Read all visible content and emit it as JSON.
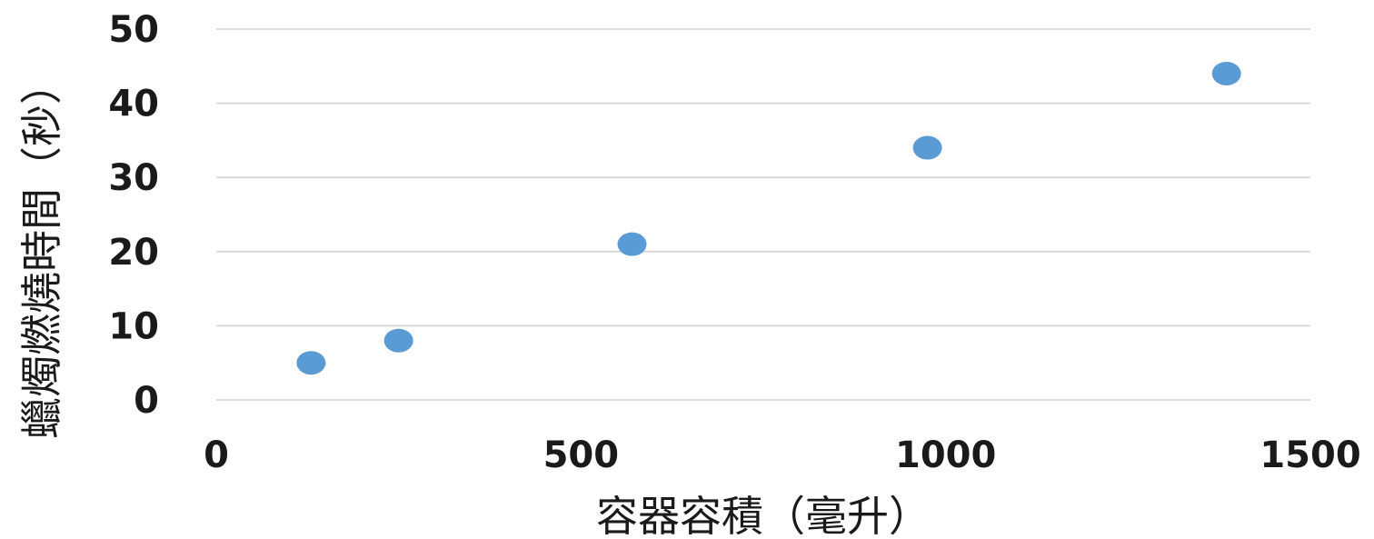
{
  "chart_data": {
    "type": "scatter",
    "title": "",
    "xlabel": "容器容積（毫升）",
    "ylabel": "蠟燭燃燒時間（秒）",
    "xlim": [
      0,
      1500
    ],
    "ylim": [
      0,
      50
    ],
    "x_ticks": [
      "0",
      "500",
      "1000",
      "1500"
    ],
    "y_ticks": [
      "0",
      "10",
      "20",
      "30",
      "40",
      "50"
    ],
    "grid": "horizontal",
    "series": [
      {
        "color": "#5b9bd5",
        "points": [
          {
            "x": 130,
            "y": 5
          },
          {
            "x": 250,
            "y": 8
          },
          {
            "x": 570,
            "y": 21
          },
          {
            "x": 975,
            "y": 34
          },
          {
            "x": 1385,
            "y": 44
          }
        ]
      }
    ]
  }
}
